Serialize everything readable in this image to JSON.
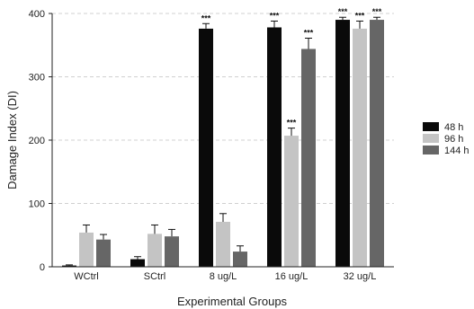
{
  "chart_data": {
    "type": "bar",
    "title": "",
    "xlabel": "Experimental Groups",
    "ylabel": "Damage Index (DI)",
    "ylim": [
      0,
      400
    ],
    "yticks": [
      0,
      100,
      200,
      300,
      400
    ],
    "grid": "horizontal dashed",
    "legend_position": "right",
    "categories": [
      "WCtrl",
      "SCtrl",
      "8 ug/L",
      "16 ug/L",
      "32 ug/L"
    ],
    "series": [
      {
        "name": "48 h",
        "color": "#0a0a0a",
        "values": [
          2,
          12,
          376,
          378,
          390
        ],
        "errors": [
          1,
          4,
          8,
          10,
          4
        ],
        "significance": [
          "",
          "",
          "***",
          "***",
          "***"
        ]
      },
      {
        "name": "96 h",
        "color": "#c4c4c4",
        "values": [
          54,
          52,
          71,
          207,
          376
        ],
        "errors": [
          12,
          14,
          13,
          12,
          12
        ],
        "significance": [
          "",
          "",
          "",
          "***",
          "***"
        ]
      },
      {
        "name": "144 h",
        "color": "#666666",
        "values": [
          43,
          48,
          24,
          344,
          390
        ],
        "errors": [
          8,
          11,
          9,
          17,
          4
        ],
        "significance": [
          "",
          "",
          "",
          "***",
          "***"
        ]
      }
    ]
  }
}
